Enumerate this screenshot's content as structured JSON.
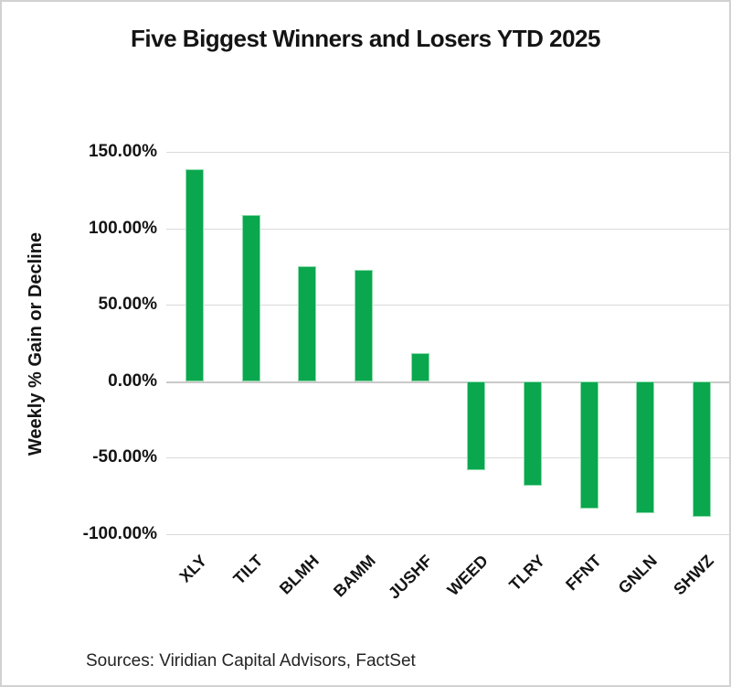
{
  "title": "Five Biggest Winners and Losers YTD 2025",
  "source_note": "Sources: Viridian Capital Advisors, FactSet",
  "chart_data": {
    "type": "bar",
    "title": "Five Biggest Winners and Losers YTD 2025",
    "xlabel": "",
    "ylabel": "Weekly % Gain or Decline",
    "categories": [
      "XLY",
      "TILT",
      "BLMH",
      "BAMM",
      "JUSHF",
      "WEED",
      "TLRY",
      "FFNT",
      "GNLN",
      "SHWZ"
    ],
    "values": [
      138.5,
      108.5,
      75,
      73,
      18.5,
      -58,
      -68.5,
      -83,
      -86,
      -88.5
    ],
    "unit": "%",
    "ylim": [
      -100,
      150
    ],
    "ytick_values": [
      150,
      100,
      50,
      0,
      -50,
      -100
    ],
    "ytick_labels": [
      "150.00%",
      "100.00%",
      "50.00%",
      "0.00%",
      "-50.00%",
      "-100.00%"
    ],
    "grid": "horizontal",
    "legend": "none"
  },
  "colors": {
    "bar": "#0aa74e",
    "gridline": "#d9d9d9",
    "zero_line": "#c9c9c9",
    "text": "#141414",
    "background": "#ffffff",
    "frame_border": "#d2d2d2"
  }
}
